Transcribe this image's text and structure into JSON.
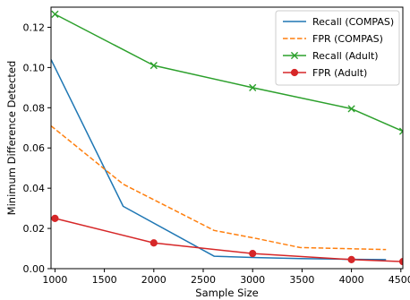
{
  "chart_data": {
    "type": "line",
    "title": "",
    "xlabel": "Sample Size",
    "ylabel": "Minimum Difference Detected",
    "xlim": [
      960,
      4520
    ],
    "ylim": [
      0.0,
      0.13
    ],
    "xticks": [
      1000,
      1500,
      2000,
      2500,
      3000,
      3500,
      4000,
      4500
    ],
    "xtick_labels": [
      "1000",
      "1500",
      "2000",
      "2500",
      "3000",
      "3500",
      "4000",
      "4500"
    ],
    "yticks": [
      0.0,
      0.02,
      0.04,
      0.06,
      0.08,
      0.1,
      0.12
    ],
    "ytick_labels": [
      "0.00",
      "0.02",
      "0.04",
      "0.06",
      "0.08",
      "0.10",
      "0.12"
    ],
    "grid": false,
    "legend_position": "top-right",
    "series": [
      {
        "name": "Recall (COMPAS)",
        "color": "#1f77b4",
        "style": "solid",
        "marker": "none",
        "x": [
          960,
          1690,
          2610,
          3040,
          3480,
          3910,
          4350
        ],
        "y": [
          0.104,
          0.031,
          0.0062,
          0.0055,
          0.005,
          0.0047,
          0.0045
        ]
      },
      {
        "name": "FPR (COMPAS)",
        "color": "#ff7f0e",
        "style": "dashed",
        "marker": "none",
        "x": [
          960,
          1690,
          2610,
          3040,
          3480,
          3910,
          4350
        ],
        "y": [
          0.071,
          0.042,
          0.019,
          0.015,
          0.0105,
          0.01,
          0.0095
        ]
      },
      {
        "name": "Recall (Adult)",
        "color": "#2ca02c",
        "style": "solid",
        "marker": "x",
        "x": [
          1000,
          2000,
          3000,
          4000,
          4520
        ],
        "y": [
          0.1265,
          0.101,
          0.09,
          0.0795,
          0.0683
        ]
      },
      {
        "name": "FPR (Adult)",
        "color": "#d62728",
        "style": "solid",
        "marker": "circle",
        "x": [
          1000,
          2000,
          3000,
          4000,
          4520
        ],
        "y": [
          0.025,
          0.0128,
          0.0075,
          0.0045,
          0.0035
        ]
      }
    ]
  }
}
